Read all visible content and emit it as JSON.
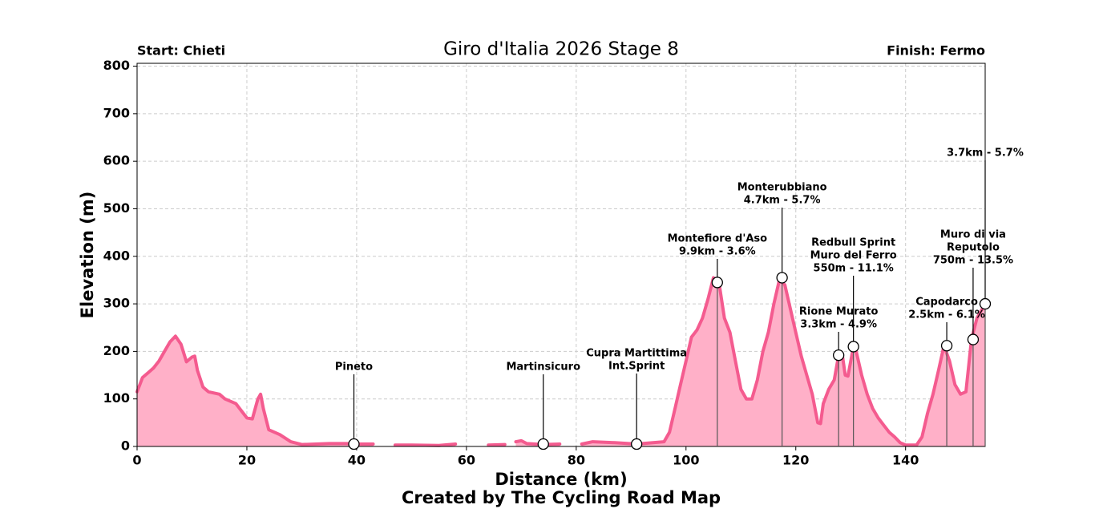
{
  "chart_data": {
    "type": "area",
    "title": "Giro d'Italia 2026 Stage 8",
    "start_label": "Start: Chieti",
    "finish_label": "Finish: Fermo",
    "credit": "Created by The Cycling Road Map",
    "x_label": "Distance (km)",
    "y_label": "Elevation (m)",
    "line_color": "#f45b8f",
    "fill_color": "#ffb0c8",
    "grid": true,
    "xlim": [
      0,
      154.5
    ],
    "ylim": [
      0,
      806
    ],
    "xticks": [
      0,
      20,
      40,
      60,
      80,
      100,
      120,
      140
    ],
    "yticks": [
      0,
      100,
      200,
      300,
      400,
      500,
      600,
      700,
      800
    ],
    "x": [
      0,
      1,
      2,
      3,
      4,
      5,
      6,
      7,
      8,
      9,
      10,
      10.5,
      11,
      12,
      13,
      15,
      16,
      18,
      19,
      20,
      21,
      22,
      22.5,
      23,
      24,
      26,
      28,
      30,
      35,
      38,
      40,
      43,
      45,
      47,
      50,
      55,
      58,
      61,
      64,
      67,
      68,
      69,
      70,
      71,
      74,
      77,
      79,
      81,
      83,
      87,
      91,
      94,
      96,
      97,
      98,
      99,
      100,
      101,
      102,
      103,
      104,
      105,
      106,
      107,
      108,
      109,
      110,
      111,
      112,
      113,
      114,
      115,
      116,
      117,
      118,
      119,
      120,
      121,
      122,
      123,
      124,
      124.5,
      125,
      126,
      127,
      127.8,
      128.5,
      129,
      129.5,
      130.5,
      131,
      132,
      133,
      134,
      135,
      136,
      137,
      138,
      139,
      140,
      142,
      143,
      144,
      145,
      146,
      147,
      148,
      149,
      150,
      151,
      152,
      153,
      154.5
    ],
    "values": [
      115,
      145,
      155,
      165,
      180,
      200,
      220,
      232,
      215,
      178,
      188,
      190,
      160,
      125,
      115,
      110,
      100,
      90,
      75,
      60,
      58,
      100,
      110,
      80,
      35,
      25,
      10,
      4,
      6,
      6,
      5,
      5,
      null,
      3,
      3,
      2,
      5,
      null,
      3,
      4,
      null,
      10,
      12,
      6,
      4,
      5,
      null,
      5,
      10,
      8,
      5,
      8,
      10,
      30,
      80,
      130,
      180,
      230,
      245,
      270,
      310,
      355,
      345,
      270,
      240,
      180,
      120,
      100,
      100,
      140,
      200,
      240,
      300,
      350,
      340,
      290,
      240,
      190,
      150,
      110,
      50,
      48,
      90,
      120,
      140,
      192,
      190,
      150,
      148,
      210,
      200,
      150,
      110,
      80,
      60,
      45,
      30,
      20,
      8,
      3,
      3,
      20,
      70,
      110,
      160,
      212,
      180,
      130,
      110,
      115,
      225,
      270,
      300
    ],
    "annotations": [
      {
        "text": [
          "Pineto"
        ],
        "x": 39.5,
        "y": 5
      },
      {
        "text": [
          "Martinsicuro"
        ],
        "x": 74,
        "y": 5
      },
      {
        "text": [
          "Cupra Martittima",
          "Int.Sprint"
        ],
        "x": 91,
        "y": 5
      },
      {
        "text": [
          "Montefiore d'Aso",
          "9.9km - 3.6%"
        ],
        "x": 105.7,
        "y": 345
      },
      {
        "text": [
          "Monterubbiano",
          "4.7km - 5.7%"
        ],
        "x": 117.5,
        "y": 355
      },
      {
        "text": [
          "Rione Murato",
          "3.3km - 4.9%"
        ],
        "x": 127.8,
        "y": 192
      },
      {
        "text": [
          "Redbull Sprint",
          "Muro del Ferro",
          "550m - 11.1%"
        ],
        "x": 130.5,
        "y": 210
      },
      {
        "text": [
          "Capodarco",
          "2.5km - 6.1%"
        ],
        "x": 147.5,
        "y": 212
      },
      {
        "text": [
          "Muro di via",
          "Reputolo",
          "750m - 13.5%"
        ],
        "x": 152.3,
        "y": 225
      },
      {
        "text": [
          "3.7km - 5.7%"
        ],
        "x": 154.5,
        "y": 300
      }
    ]
  }
}
